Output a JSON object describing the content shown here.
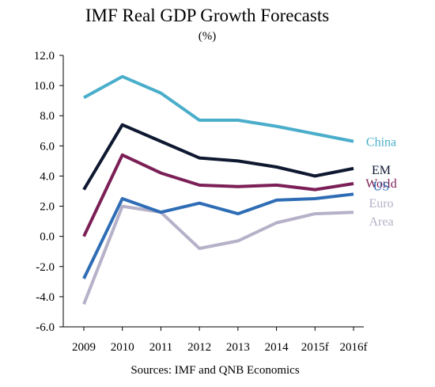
{
  "chart_data": {
    "type": "line",
    "title": "IMF Real GDP Growth Forecasts",
    "subtitle": "(%)",
    "source": "Sources: IMF and QNB Economics",
    "categories": [
      "2009",
      "2010",
      "2011",
      "2012",
      "2013",
      "2014",
      "2015f",
      "2016f"
    ],
    "y_ticks": [
      "12.0",
      "10.0",
      "8.0",
      "6.0",
      "4.0",
      "2.0",
      "0.0",
      "-2.0",
      "-4.0",
      "-6.0"
    ],
    "ylim": [
      -6,
      12
    ],
    "grid": false,
    "series": [
      {
        "name": "China",
        "label_lines": [
          "China"
        ],
        "color": "#4aaecb",
        "values": [
          9.2,
          10.6,
          9.5,
          7.7,
          7.7,
          7.3,
          6.8,
          6.3
        ]
      },
      {
        "name": "EM",
        "label_lines": [
          "EM"
        ],
        "color": "#0e1830",
        "values": [
          3.1,
          7.4,
          6.3,
          5.2,
          5.0,
          4.6,
          4.0,
          4.5
        ]
      },
      {
        "name": "World",
        "label_lines": [
          "World"
        ],
        "color": "#7b1f56",
        "values": [
          0.0,
          5.4,
          4.2,
          3.4,
          3.3,
          3.4,
          3.1,
          3.5
        ]
      },
      {
        "name": "US",
        "label_lines": [
          "US"
        ],
        "color": "#2e6db5",
        "values": [
          -2.8,
          2.5,
          1.6,
          2.2,
          1.5,
          2.4,
          2.5,
          2.8
        ]
      },
      {
        "name": "Euro Area",
        "label_lines": [
          "Euro",
          "Area"
        ],
        "color": "#b6b0c8",
        "values": [
          -4.5,
          2.0,
          1.6,
          -0.8,
          -0.3,
          0.9,
          1.5,
          1.6
        ]
      }
    ]
  }
}
